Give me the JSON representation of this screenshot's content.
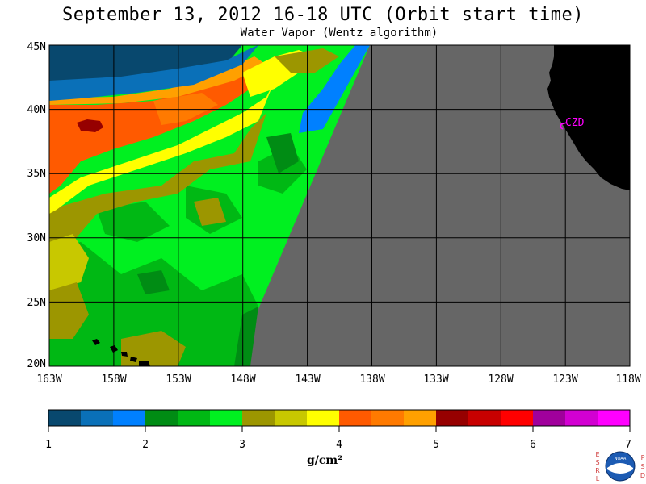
{
  "title": "September 13, 2012  16-18 UTC  (Orbit start time)",
  "subtitle": "Water Vapor (Wentz algorithm)",
  "lat_labels": [
    "45N",
    "40N",
    "35N",
    "30N",
    "25N",
    "20N"
  ],
  "lon_labels": [
    "163W",
    "158W",
    "153W",
    "148W",
    "143W",
    "138W",
    "133W",
    "128W",
    "123W",
    "118W"
  ],
  "site_label": "CZD",
  "colorbar": {
    "ticks": [
      "1",
      "2",
      "3",
      "4",
      "5",
      "6",
      "7"
    ],
    "units": "g/cm²",
    "colors": [
      "#08486e",
      "#0a70b8",
      "#0080ff",
      "#008c14",
      "#00b814",
      "#00f020",
      "#9c9600",
      "#c8c800",
      "#ffff00",
      "#ff5a00",
      "#ff7a00",
      "#ffa000",
      "#960000",
      "#c80000",
      "#ff0000",
      "#a0009c",
      "#d200d2",
      "#ff00ff"
    ]
  },
  "colors": {
    "no_data": "#666666",
    "land": "#000000",
    "grid": "#000000",
    "site_marker": "#ff00ff"
  },
  "logo": {
    "left_letters": "ESRL",
    "right_letters": "PSD",
    "badge_text": "NOAA"
  },
  "map_extent": {
    "lat_min": 20,
    "lat_max": 45,
    "lon_min": -163,
    "lon_max": -118
  }
}
